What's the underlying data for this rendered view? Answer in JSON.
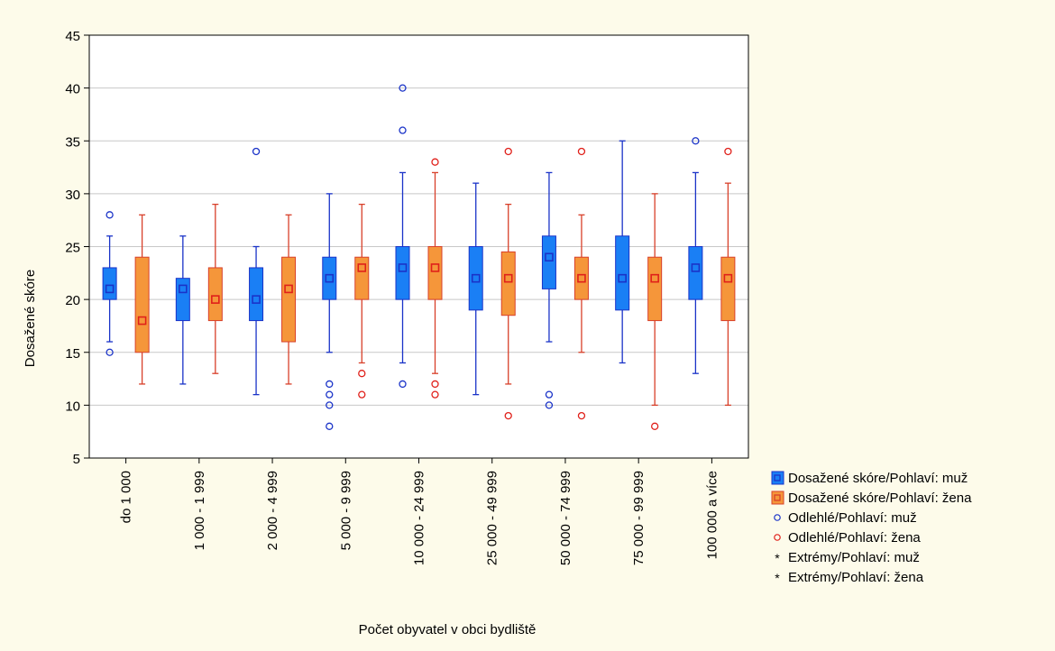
{
  "chart_data": {
    "type": "boxplot",
    "xlabel": "Počet obyvatel v obci bydliště",
    "ylabel": "Dosažené skóre",
    "ylim": [
      5,
      45
    ],
    "yticks": [
      5,
      10,
      15,
      20,
      25,
      30,
      35,
      40,
      45
    ],
    "grid": true,
    "legend_position": "right-bottom",
    "categories": [
      "do 1 000",
      "1 000 - 1 999",
      "2 000 - 4 999",
      "5 000 - 9 999",
      "10 000 - 24 999",
      "25 000 - 49 999",
      "50 000 - 74 999",
      "75 000 - 99 999",
      "100 000 a více"
    ],
    "series": [
      {
        "name": "muž",
        "box_color": "#1a7ff5",
        "edge_color": "#1a33c8",
        "marker_color": "#1a33c8",
        "stats": [
          {
            "median": 21,
            "q1": 20,
            "q3": 23,
            "min": 16,
            "max": 26,
            "outliers": [
              28,
              15
            ]
          },
          {
            "median": 21,
            "q1": 18,
            "q3": 22,
            "min": 12,
            "max": 26,
            "outliers": []
          },
          {
            "median": 20,
            "q1": 18,
            "q3": 23,
            "min": 11,
            "max": 25,
            "outliers": [
              34
            ]
          },
          {
            "median": 22,
            "q1": 20,
            "q3": 24,
            "min": 15,
            "max": 30,
            "outliers": [
              12,
              11,
              10,
              8
            ]
          },
          {
            "median": 23,
            "q1": 20,
            "q3": 25,
            "min": 14,
            "max": 32,
            "outliers": [
              40,
              36,
              12
            ]
          },
          {
            "median": 22,
            "q1": 19,
            "q3": 25,
            "min": 11,
            "max": 31,
            "outliers": []
          },
          {
            "median": 24,
            "q1": 21,
            "q3": 26,
            "min": 16,
            "max": 32,
            "outliers": [
              11,
              10
            ]
          },
          {
            "median": 22,
            "q1": 19,
            "q3": 26,
            "min": 14,
            "max": 35,
            "outliers": []
          },
          {
            "median": 23,
            "q1": 20,
            "q3": 25,
            "min": 13,
            "max": 32,
            "outliers": [
              35
            ]
          }
        ]
      },
      {
        "name": "žena",
        "box_color": "#f5963a",
        "edge_color": "#d8402a",
        "marker_color": "#e0201a",
        "stats": [
          {
            "median": 18,
            "q1": 15,
            "q3": 24,
            "min": 12,
            "max": 28,
            "outliers": []
          },
          {
            "median": 20,
            "q1": 18,
            "q3": 23,
            "min": 13,
            "max": 29,
            "outliers": []
          },
          {
            "median": 21,
            "q1": 16,
            "q3": 24,
            "min": 12,
            "max": 28,
            "outliers": []
          },
          {
            "median": 23,
            "q1": 20,
            "q3": 24,
            "min": 14,
            "max": 29,
            "outliers": [
              13,
              11
            ]
          },
          {
            "median": 23,
            "q1": 20,
            "q3": 25,
            "min": 13,
            "max": 32,
            "outliers": [
              33,
              12,
              11
            ]
          },
          {
            "median": 22,
            "q1": 18.5,
            "q3": 24.5,
            "min": 12,
            "max": 29,
            "outliers": [
              34,
              9
            ]
          },
          {
            "median": 22,
            "q1": 20,
            "q3": 24,
            "min": 15,
            "max": 28,
            "outliers": [
              34,
              9
            ]
          },
          {
            "median": 22,
            "q1": 18,
            "q3": 24,
            "min": 10,
            "max": 30,
            "outliers": [
              8
            ]
          },
          {
            "median": 22,
            "q1": 18,
            "q3": 24,
            "min": 10,
            "max": 31,
            "outliers": [
              34
            ]
          }
        ]
      }
    ],
    "legend": [
      {
        "label": "Dosažené skóre/Pohlaví: muž",
        "symbol": "box",
        "color": "#1a7ff5",
        "edge": "#1a33c8"
      },
      {
        "label": "Dosažené skóre/Pohlaví: žena",
        "symbol": "box",
        "color": "#f5963a",
        "edge": "#d8402a"
      },
      {
        "label": "Odlehlé/Pohlaví: muž",
        "symbol": "circle",
        "color": "#1a33c8"
      },
      {
        "label": "Odlehlé/Pohlaví: žena",
        "symbol": "circle",
        "color": "#e0201a"
      },
      {
        "label": "Extrémy/Pohlaví: muž",
        "symbol": "asterisk",
        "color": "#1a33c8"
      },
      {
        "label": "Extrémy/Pohlaví: žena",
        "symbol": "asterisk",
        "color": "#e0201a"
      }
    ]
  }
}
